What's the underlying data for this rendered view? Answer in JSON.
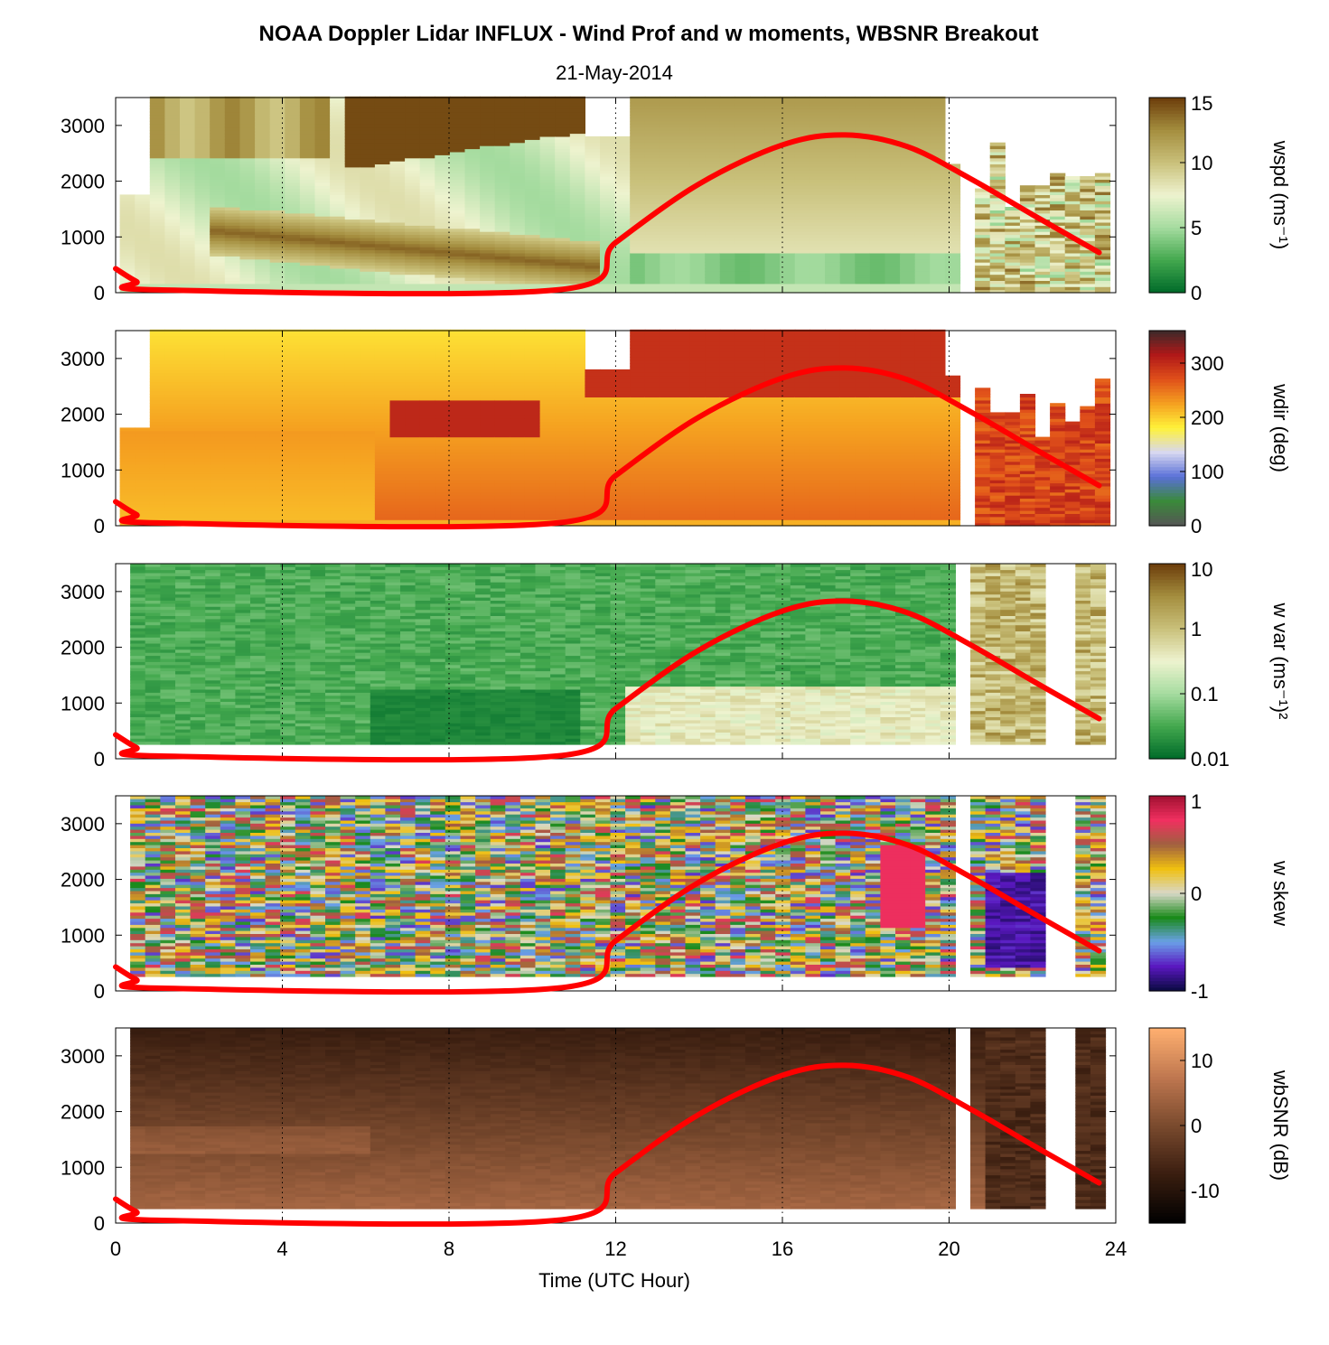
{
  "title": "NOAA Doppler Lidar INFLUX - Wind Prof and w moments, WBSNR Breakout",
  "subtitle": "21-May-2014",
  "xlabel": "Time (UTC Hour)",
  "colors": {
    "sun_curve": "#ff0000",
    "gridline": "#000000"
  },
  "chart_data": [
    {
      "type": "heatmap",
      "variable": "wspd",
      "colorbar_label": "wspd (ms⁻¹)",
      "colorbar_ticks": [
        "15",
        "10",
        "5",
        "0"
      ],
      "colorbar_range": [
        0,
        15
      ],
      "colorbar_scale": "linear",
      "colormap": [
        "#006b2a",
        "#43a84e",
        "#a6dca0",
        "#eef3cf",
        "#c9c07a",
        "#a48d3e",
        "#6b3c0a"
      ],
      "x_ticks": [
        "0",
        "4",
        "8",
        "12",
        "16",
        "20",
        "24"
      ],
      "y_ticks": [
        "0",
        "1000",
        "2000",
        "3000"
      ],
      "xlim": [
        0,
        24
      ],
      "ylim": [
        0,
        3500
      ]
    },
    {
      "type": "heatmap",
      "variable": "wdir",
      "colorbar_label": "wdir (deg)",
      "colorbar_ticks": [
        "300",
        "200",
        "100",
        "0"
      ],
      "colorbar_range": [
        0,
        360
      ],
      "colorbar_scale": "linear",
      "colormap": [
        "#555555",
        "#3a8a3a",
        "#5a70d8",
        "#d8d8f0",
        "#fff23a",
        "#f5a020",
        "#e0501a",
        "#b01818",
        "#3a2a2a"
      ],
      "x_ticks": [
        "0",
        "4",
        "8",
        "12",
        "16",
        "20",
        "24"
      ],
      "y_ticks": [
        "0",
        "1000",
        "2000",
        "3000"
      ],
      "xlim": [
        0,
        24
      ],
      "ylim": [
        0,
        3500
      ]
    },
    {
      "type": "heatmap",
      "variable": "w var",
      "colorbar_label": "w var (ms⁻¹)²",
      "colorbar_ticks": [
        "10",
        "1",
        "0.1",
        "0.01"
      ],
      "colorbar_range": [
        0.01,
        10
      ],
      "colorbar_scale": "log",
      "colormap": [
        "#006b2a",
        "#43a84e",
        "#a6dca0",
        "#eef3cf",
        "#c9c07a",
        "#a48d3e",
        "#6b3c0a"
      ],
      "x_ticks": [
        "0",
        "4",
        "8",
        "12",
        "16",
        "20",
        "24"
      ],
      "y_ticks": [
        "0",
        "1000",
        "2000",
        "3000"
      ],
      "xlim": [
        0,
        24
      ],
      "ylim": [
        0,
        3500
      ]
    },
    {
      "type": "heatmap",
      "variable": "w skew",
      "colorbar_label": "w skew",
      "colorbar_ticks": [
        "1",
        "0",
        "-1"
      ],
      "colorbar_range": [
        -1,
        1
      ],
      "colorbar_scale": "linear",
      "colormap": [
        "#0a0a40",
        "#5a18c0",
        "#6aa0e8",
        "#1a8a1a",
        "#d8d8c8",
        "#f0c010",
        "#a06040",
        "#f03060",
        "#a01030"
      ],
      "x_ticks": [
        "0",
        "4",
        "8",
        "12",
        "16",
        "20",
        "24"
      ],
      "y_ticks": [
        "0",
        "1000",
        "2000",
        "3000"
      ],
      "xlim": [
        0,
        24
      ],
      "ylim": [
        0,
        3500
      ]
    },
    {
      "type": "heatmap",
      "variable": "wbSNR",
      "colorbar_label": "wbSNR (dB)",
      "colorbar_ticks": [
        "10",
        "0",
        "-10"
      ],
      "colorbar_range": [
        -15,
        15
      ],
      "colorbar_scale": "linear",
      "colormap": [
        "#000000",
        "#3a1e10",
        "#7a4a2e",
        "#c07850",
        "#ffb070"
      ],
      "x_ticks": [
        "0",
        "4",
        "8",
        "12",
        "16",
        "20",
        "24"
      ],
      "y_ticks": [
        "0",
        "1000",
        "2000",
        "3000"
      ],
      "xlim": [
        0,
        24
      ],
      "ylim": [
        0,
        3500
      ]
    }
  ],
  "sun_curve": {
    "x": [
      0,
      0.5,
      1.0,
      10.6,
      12,
      14,
      16,
      17.5,
      19,
      20.5,
      22,
      23.6
    ],
    "y": [
      430,
      200,
      50,
      50,
      900,
      1950,
      2650,
      2830,
      2620,
      2050,
      1400,
      720
    ]
  }
}
